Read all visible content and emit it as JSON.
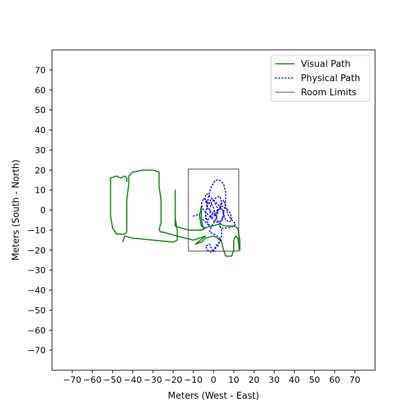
{
  "chart_data": {
    "type": "line",
    "xlabel": "Meters (West - East)",
    "ylabel": "Meters (South - North)",
    "xlim": [
      -80,
      80
    ],
    "ylim": [
      -80,
      80
    ],
    "xticks": [
      -70,
      -60,
      -50,
      -40,
      -30,
      -20,
      -10,
      0,
      10,
      20,
      30,
      40,
      50,
      60,
      70
    ],
    "yticks": [
      -70,
      -60,
      -50,
      -40,
      -30,
      -20,
      -10,
      0,
      10,
      20,
      30,
      40,
      50,
      60,
      70
    ],
    "legend_position": "top-right",
    "series": [
      {
        "name": "Visual Path",
        "style": "solid",
        "color": "#008000",
        "points": [
          [
            -45,
            -16
          ],
          [
            -44,
            -13
          ],
          [
            -40,
            -14
          ],
          [
            -30,
            -15
          ],
          [
            -20,
            -16
          ],
          [
            -18,
            -15
          ],
          [
            -18,
            -10
          ],
          [
            -19,
            -4
          ],
          [
            -19,
            2
          ],
          [
            -19,
            8
          ],
          [
            -19,
            10
          ],
          [
            -19,
            -8
          ],
          [
            -16,
            -9
          ],
          [
            -12,
            -10
          ],
          [
            -6,
            -10
          ],
          [
            -4,
            -9
          ],
          [
            -6,
            -8
          ],
          [
            -7,
            -3
          ],
          [
            -6,
            2
          ],
          [
            -6,
            0
          ],
          [
            -6,
            -5
          ],
          [
            -5,
            -9
          ],
          [
            -1,
            -8
          ],
          [
            3,
            -7
          ],
          [
            6,
            -8
          ],
          [
            10,
            -8
          ],
          [
            12,
            -9
          ],
          [
            13,
            -15
          ],
          [
            13,
            -20
          ],
          [
            12,
            -14
          ],
          [
            11,
            -13
          ],
          [
            10,
            -15
          ],
          [
            10,
            -20
          ],
          [
            9,
            -23
          ],
          [
            6,
            -23
          ],
          [
            5,
            -20
          ],
          [
            4,
            -16
          ],
          [
            2,
            -14
          ],
          [
            0,
            -13
          ],
          [
            -4,
            -14
          ],
          [
            -6,
            -16
          ],
          [
            -9,
            -17
          ],
          [
            -4,
            -13
          ],
          [
            -10,
            -15
          ],
          [
            -14,
            -14
          ],
          [
            -18,
            -13
          ],
          [
            -25,
            -11
          ],
          [
            -26,
            -11
          ],
          [
            -27,
            -10
          ],
          [
            -26,
            -6
          ],
          [
            -26,
            -2
          ],
          [
            -26,
            5
          ],
          [
            -27,
            12
          ],
          [
            -27,
            16
          ],
          [
            -27,
            19
          ],
          [
            -30,
            20
          ],
          [
            -35,
            20
          ],
          [
            -40,
            19
          ],
          [
            -42,
            17
          ],
          [
            -42,
            13
          ],
          [
            -43,
            5
          ],
          [
            -43,
            -5
          ],
          [
            -43,
            -11
          ],
          [
            -44,
            -12
          ],
          [
            -48,
            -12
          ],
          [
            -50,
            -9
          ],
          [
            -51,
            -3
          ],
          [
            -51,
            5
          ],
          [
            -51,
            12
          ],
          [
            -51,
            16
          ],
          [
            -48,
            17
          ],
          [
            -46,
            16
          ],
          [
            -44,
            17
          ],
          [
            -43,
            16
          ],
          [
            -43,
            14
          ]
        ]
      },
      {
        "name": "Physical Path",
        "style": "dotted",
        "color": "#0000ff",
        "points": [
          [
            -10,
            -3
          ],
          [
            -7,
            -2
          ],
          [
            -6,
            -4
          ],
          [
            -4,
            -6
          ],
          [
            -2,
            -8
          ],
          [
            -3,
            -6
          ],
          [
            -4,
            -2
          ],
          [
            -3,
            4
          ],
          [
            -2,
            9
          ],
          [
            -1,
            12
          ],
          [
            1,
            15
          ],
          [
            3,
            15
          ],
          [
            5,
            13
          ],
          [
            6,
            9
          ],
          [
            6,
            4
          ],
          [
            5,
            -1
          ],
          [
            4,
            -5
          ],
          [
            3,
            -8
          ],
          [
            4,
            -9
          ],
          [
            7,
            -9
          ],
          [
            10,
            -8
          ],
          [
            11,
            -7
          ],
          [
            9,
            -5
          ],
          [
            7,
            -2
          ],
          [
            6,
            2
          ],
          [
            5,
            5
          ],
          [
            4,
            3
          ],
          [
            2,
            -1
          ],
          [
            1,
            -3
          ],
          [
            0,
            1
          ],
          [
            -1,
            3
          ],
          [
            -3,
            4
          ],
          [
            -5,
            6
          ],
          [
            -6,
            3
          ],
          [
            -5,
            0
          ],
          [
            -3,
            -2
          ],
          [
            -1,
            -4
          ],
          [
            1,
            -2
          ],
          [
            3,
            1
          ],
          [
            4,
            4
          ],
          [
            3,
            7
          ],
          [
            1,
            6
          ],
          [
            -1,
            4
          ],
          [
            -2,
            0
          ],
          [
            -1,
            -4
          ],
          [
            1,
            -6
          ],
          [
            3,
            -6
          ],
          [
            5,
            -4
          ],
          [
            5,
            -1
          ],
          [
            3,
            2
          ],
          [
            1,
            4
          ],
          [
            -1,
            6
          ],
          [
            -3,
            8
          ],
          [
            -4,
            8
          ],
          [
            -4,
            5
          ],
          [
            -3,
            1
          ],
          [
            -1,
            -1
          ],
          [
            1,
            -3
          ],
          [
            2,
            -5
          ],
          [
            3,
            -7
          ],
          [
            4,
            -10
          ],
          [
            4,
            -13
          ],
          [
            3,
            -16
          ],
          [
            2,
            -18
          ],
          [
            1,
            -19
          ],
          [
            -1,
            -21
          ],
          [
            -3,
            -20
          ],
          [
            -4,
            -18
          ],
          [
            -2,
            -17
          ],
          [
            -1,
            -19
          ],
          [
            0,
            -21
          ],
          [
            1,
            -18
          ],
          [
            3,
            -16
          ],
          [
            4,
            -15
          ],
          [
            3,
            -14
          ],
          [
            2,
            -13
          ],
          [
            0,
            -12
          ],
          [
            -2,
            -11
          ],
          [
            -1,
            -8
          ],
          [
            1,
            -5
          ],
          [
            2,
            -2
          ],
          [
            2,
            1
          ],
          [
            1,
            3
          ],
          [
            0,
            5
          ],
          [
            -1,
            6
          ],
          [
            -2,
            4
          ],
          [
            -3,
            2
          ],
          [
            -4,
            -1
          ],
          [
            -4,
            -4
          ],
          [
            -3,
            -5
          ],
          [
            -1,
            -3
          ],
          [
            0,
            -1
          ],
          [
            2,
            0
          ],
          [
            4,
            1
          ],
          [
            5,
            -2
          ],
          [
            6,
            -5
          ],
          [
            8,
            -6
          ],
          [
            9,
            -4
          ],
          [
            8,
            -1
          ],
          [
            6,
            1
          ],
          [
            4,
            2
          ]
        ]
      },
      {
        "name": "Room Limits",
        "style": "solid",
        "color": "#808080",
        "points": [
          [
            -12.5,
            -20.5
          ],
          [
            12.5,
            -20.5
          ],
          [
            12.5,
            20.5
          ],
          [
            -12.5,
            20.5
          ],
          [
            -12.5,
            -20.5
          ]
        ]
      }
    ]
  }
}
